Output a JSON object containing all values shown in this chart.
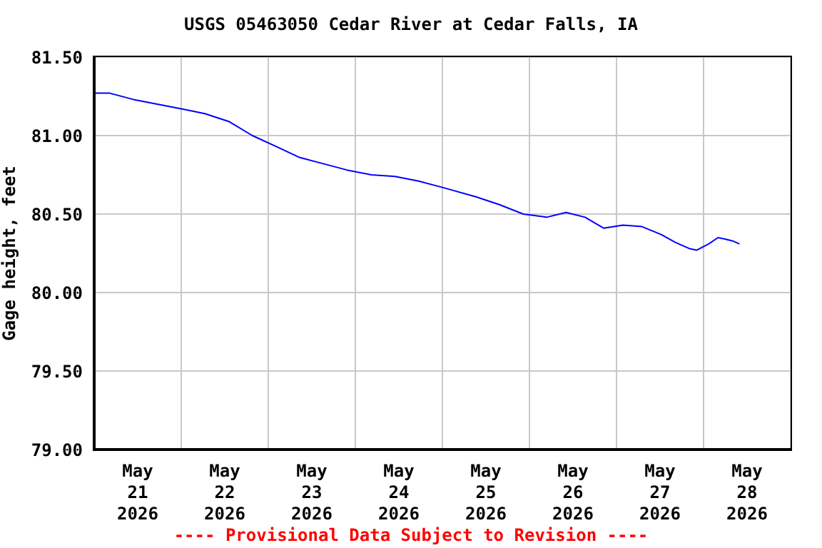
{
  "chart_data": {
    "type": "line",
    "title": "USGS 05463050 Cedar River at Cedar Falls, IA",
    "ylabel": "Gage height, feet",
    "annotations": [
      "---- Provisional Data Subject to Revision ----"
    ],
    "x": [
      "2026-05-21T00:00",
      "2026-05-21T04:18",
      "2026-05-21T10:48",
      "2026-05-21T17:24",
      "2026-05-22T00:00",
      "2026-05-22T06:30",
      "2026-05-22T13:06",
      "2026-05-22T19:36",
      "2026-05-23T02:12",
      "2026-05-23T08:42",
      "2026-05-23T15:18",
      "2026-05-23T21:48",
      "2026-05-24T04:24",
      "2026-05-24T10:54",
      "2026-05-24T17:24",
      "2026-05-25T00:00",
      "2026-05-25T09:12",
      "2026-05-25T15:42",
      "2026-05-25T22:18",
      "2026-05-26T04:48",
      "2026-05-26T10:06",
      "2026-05-26T15:18",
      "2026-05-26T20:30",
      "2026-05-27T01:48",
      "2026-05-27T07:00",
      "2026-05-27T12:18",
      "2026-05-27T16:12",
      "2026-05-27T20:06",
      "2026-05-27T22:06",
      "2026-05-28T01:24",
      "2026-05-28T04:00",
      "2026-05-28T07:54",
      "2026-05-28T09:54"
    ],
    "series": [
      {
        "color": "#0000ff",
        "values": [
          81.27,
          81.27,
          81.23,
          81.2,
          81.17,
          81.14,
          81.09,
          81.0,
          80.93,
          80.86,
          80.82,
          80.78,
          80.75,
          80.74,
          80.71,
          80.67,
          80.61,
          80.56,
          80.5,
          80.48,
          80.51,
          80.48,
          80.41,
          80.43,
          80.42,
          80.37,
          80.32,
          80.28,
          80.27,
          80.31,
          80.35,
          80.33,
          80.31
        ]
      }
    ],
    "xlim": [
      "2026-05-21T00:00",
      "2026-05-29T00:00"
    ],
    "xticks": [
      {
        "value": "2026-05-21T00:00",
        "label": null
      },
      {
        "value": "2026-05-21T12:00",
        "label": "May\n21\n2026"
      },
      {
        "value": "2026-05-22T00:00",
        "label": null
      },
      {
        "value": "2026-05-22T12:00",
        "label": "May\n22\n2026"
      },
      {
        "value": "2026-05-23T00:00",
        "label": null
      },
      {
        "value": "2026-05-23T12:00",
        "label": "May\n23\n2026"
      },
      {
        "value": "2026-05-24T00:00",
        "label": null
      },
      {
        "value": "2026-05-24T12:00",
        "label": "May\n24\n2026"
      },
      {
        "value": "2026-05-25T00:00",
        "label": null
      },
      {
        "value": "2026-05-25T12:00",
        "label": "May\n25\n2026"
      },
      {
        "value": "2026-05-26T00:00",
        "label": null
      },
      {
        "value": "2026-05-26T12:00",
        "label": "May\n26\n2026"
      },
      {
        "value": "2026-05-27T00:00",
        "label": null
      },
      {
        "value": "2026-05-27T12:00",
        "label": "May\n27\n2026"
      },
      {
        "value": "2026-05-28T00:00",
        "label": null
      },
      {
        "value": "2026-05-28T12:00",
        "label": "May\n28\n2026"
      },
      {
        "value": "2026-05-29T00:00",
        "label": null
      }
    ],
    "ylim": [
      79.0,
      81.5
    ],
    "yticks": [
      {
        "value": 79.0,
        "label": "79.00"
      },
      {
        "value": 79.5,
        "label": "79.50"
      },
      {
        "value": 80.0,
        "label": "80.00"
      },
      {
        "value": 80.5,
        "label": "80.50"
      },
      {
        "value": 81.0,
        "label": "81.00"
      },
      {
        "value": 81.5,
        "label": "81.50"
      }
    ],
    "grid": true,
    "marker": "none",
    "line_style": "solid"
  }
}
